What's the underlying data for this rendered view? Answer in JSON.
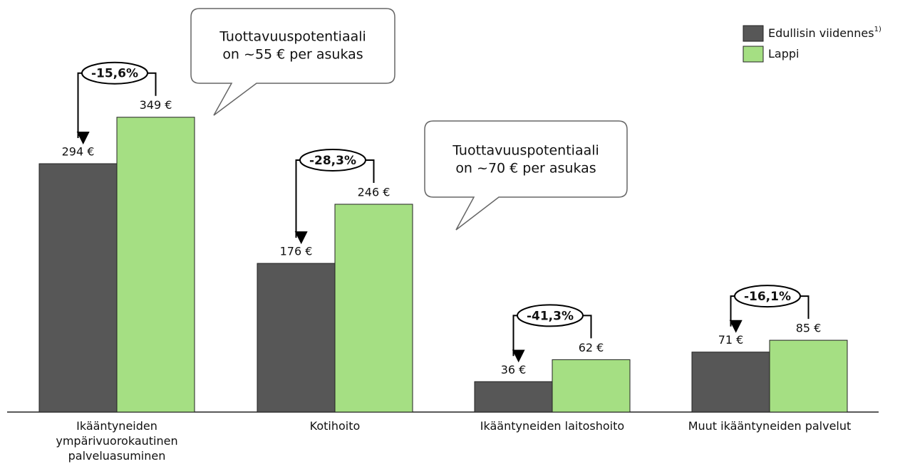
{
  "chart_data": {
    "type": "bar",
    "categories": [
      "Ikääntyneiden ympärivuorokautinen palveluasuminen",
      "Kotihoito",
      "Ikääntyneiden laitoshoito",
      "Muut ikääntyneiden palvelut"
    ],
    "series": [
      {
        "name": "Edullisin viidennes",
        "name_note": "1)",
        "color": "#575757",
        "values": [
          294,
          176,
          36,
          71
        ],
        "value_labels": [
          "294 €",
          "176 €",
          "36 €",
          "71 €"
        ]
      },
      {
        "name": "Lappi",
        "color": "#a5df83",
        "values": [
          349,
          246,
          62,
          85
        ],
        "value_labels": [
          "349 €",
          "246 €",
          "62 €",
          "85 €"
        ]
      }
    ],
    "differences": [
      "-15,6%",
      "-28,3%",
      "-41,3%",
      "-16,1%"
    ],
    "callouts": [
      {
        "lines": [
          "Tuottavuuspotentiaali",
          "on ~55 € per asukas"
        ]
      },
      {
        "lines": [
          "Tuottavuuspotentiaali",
          "on ~70 € per asukas"
        ]
      }
    ],
    "legend": "top-right"
  }
}
